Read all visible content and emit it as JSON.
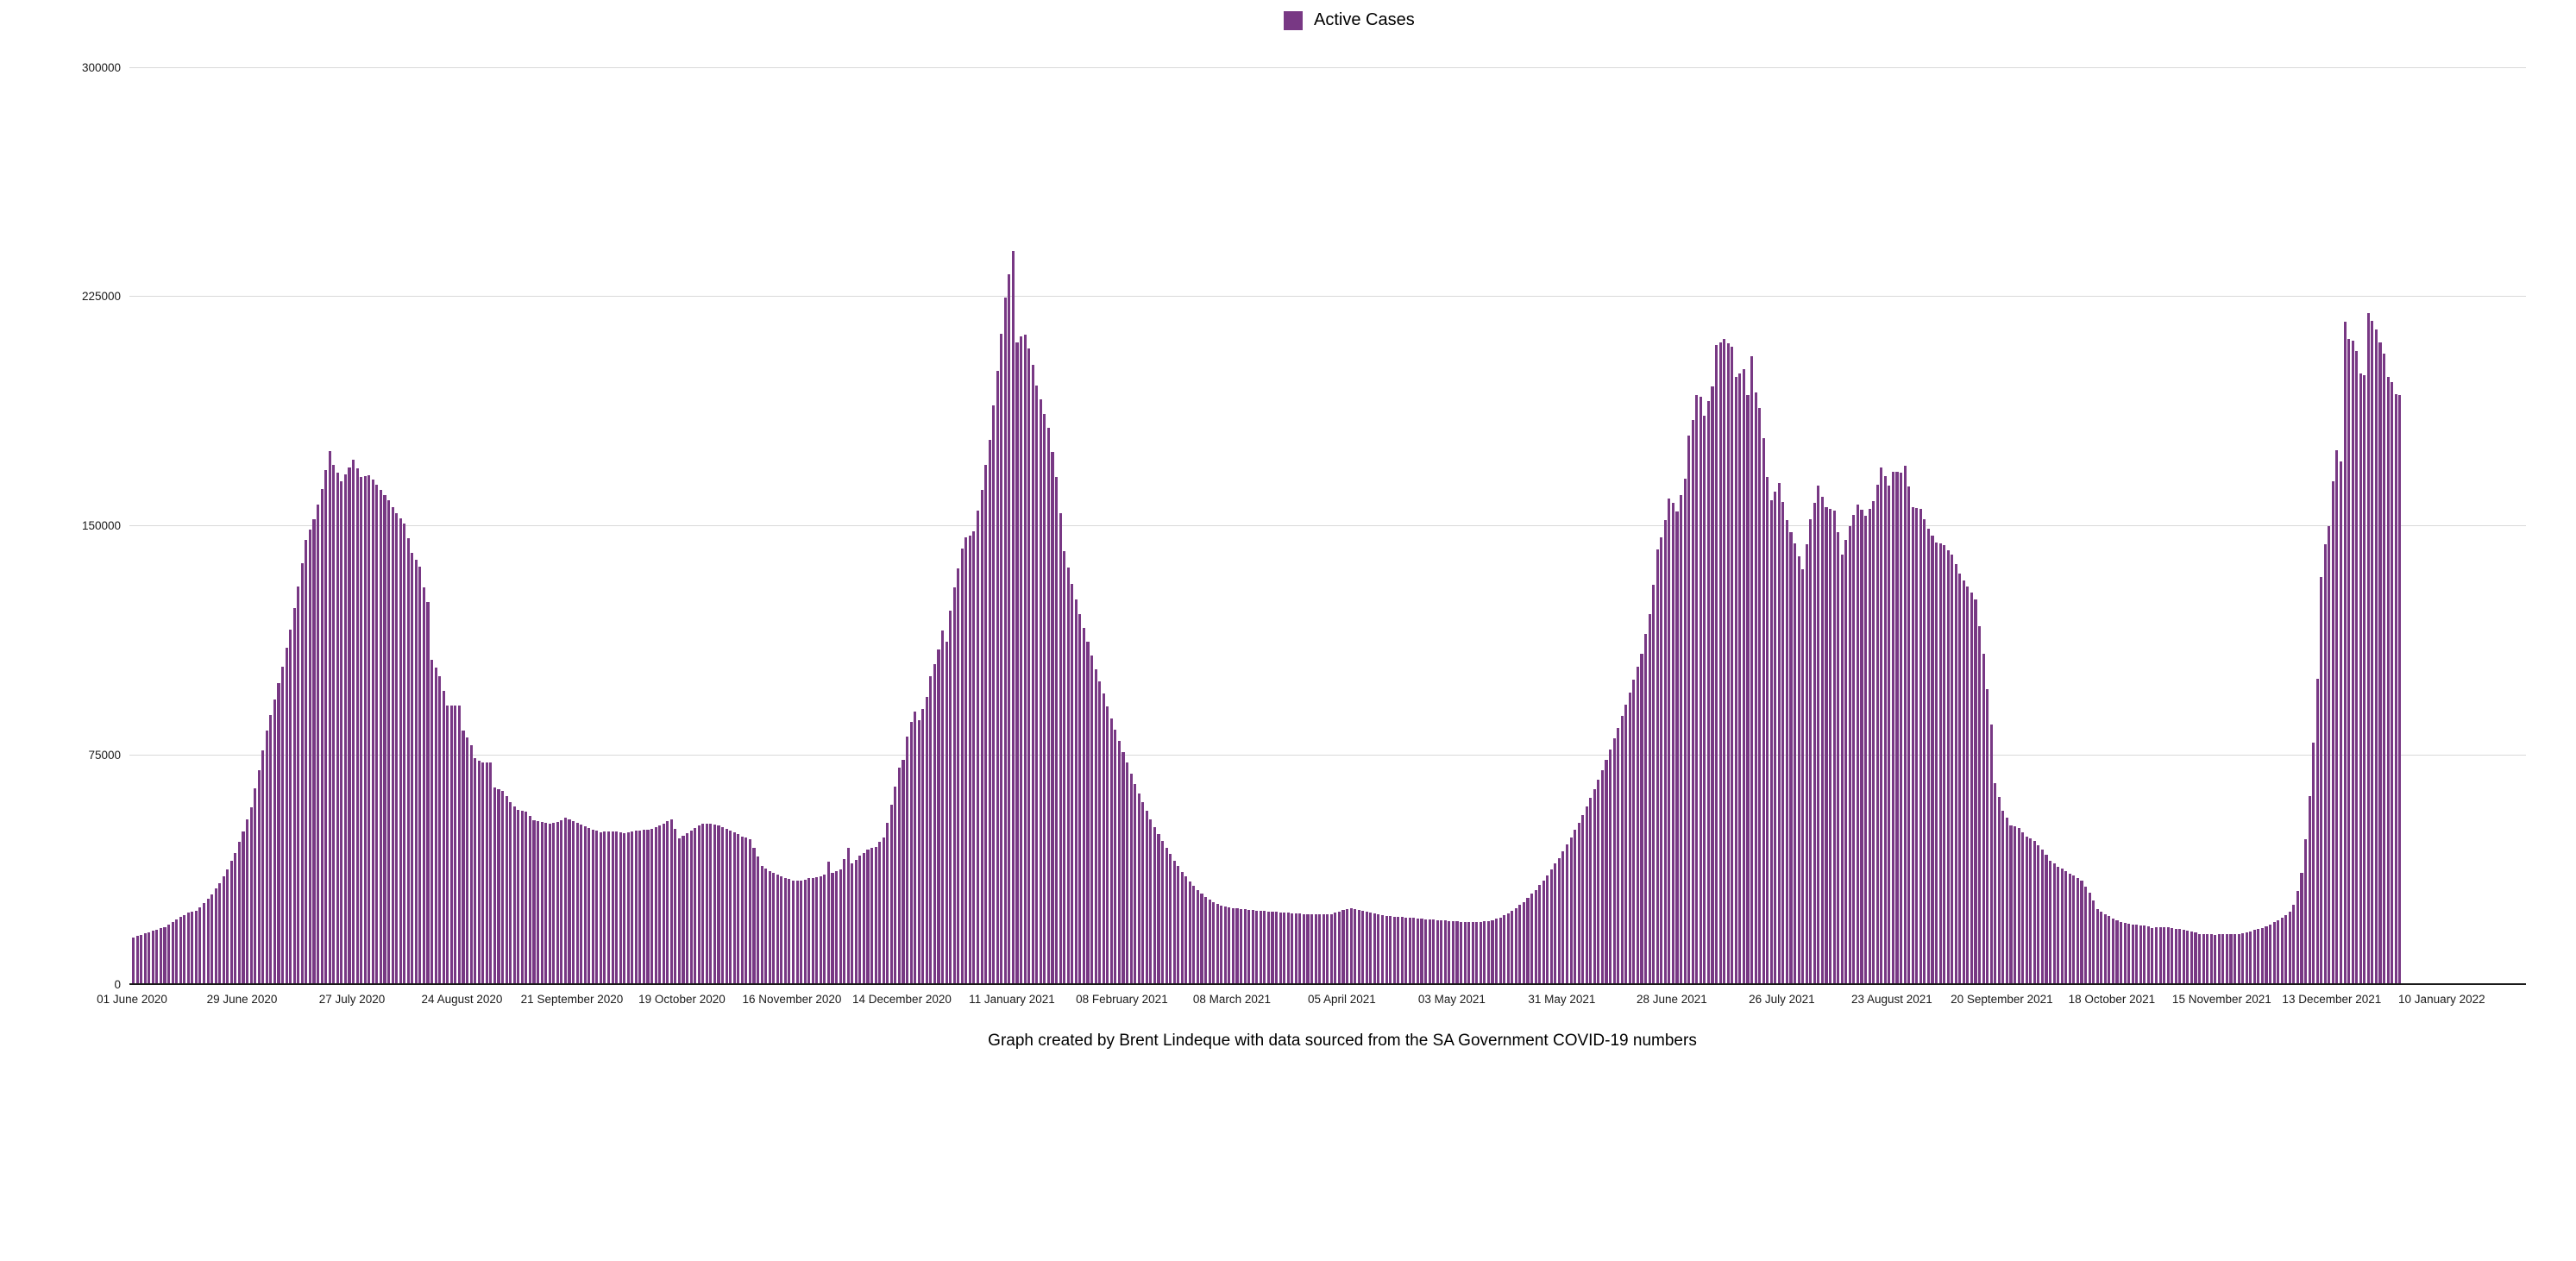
{
  "legend": {
    "label": "Active Cases",
    "color": "#783884"
  },
  "caption": "Graph created by Brent Lindeque with data sourced from the SA Government COVID-19 numbers",
  "chart_data": {
    "type": "bar",
    "title": "",
    "xlabel": "",
    "ylabel": "",
    "series_name": "Active Cases",
    "bar_color": "#783884",
    "grid": "horizontal",
    "legend_position": "top-center",
    "ylim": [
      0,
      300000
    ],
    "y_ticks": [
      0,
      75000,
      150000,
      225000,
      300000
    ],
    "x_start_date": "01 June 2020",
    "x_tick_interval_days": 28,
    "x_tick_labels": [
      "01 June 2020",
      "29 June 2020",
      "27 July 2020",
      "24 August 2020",
      "21 September 2020",
      "19 October 2020",
      "16 November 2020",
      "14 December 2020",
      "11 January 2021",
      "08 February 2021",
      "08 March 2021",
      "05 April 2021",
      "03 May 2021",
      "31 May 2021",
      "28 June 2021",
      "26 July 2021",
      "23 August 2021",
      "20 September 2021",
      "18 October 2021",
      "15 November 2021",
      "13 December 2021",
      "10 January 2022"
    ],
    "n_days": 578,
    "daily_keypoints": [
      [
        0,
        15300
      ],
      [
        2,
        16200
      ],
      [
        4,
        17000
      ],
      [
        6,
        17900
      ],
      [
        8,
        18600
      ],
      [
        10,
        20200
      ],
      [
        12,
        22000
      ],
      [
        14,
        23300
      ],
      [
        16,
        24000
      ],
      [
        18,
        26400
      ],
      [
        20,
        29400
      ],
      [
        22,
        33000
      ],
      [
        24,
        37500
      ],
      [
        26,
        43000
      ],
      [
        28,
        50000
      ],
      [
        30,
        58000
      ],
      [
        32,
        70000
      ],
      [
        34,
        83000
      ],
      [
        36,
        93000
      ],
      [
        38,
        104000
      ],
      [
        40,
        116000
      ],
      [
        42,
        130000
      ],
      [
        44,
        145300
      ],
      [
        46,
        152000
      ],
      [
        48,
        162000
      ],
      [
        50,
        174400
      ],
      [
        51,
        170000
      ],
      [
        53,
        164500
      ],
      [
        55,
        169000
      ],
      [
        56,
        171600
      ],
      [
        58,
        166000
      ],
      [
        60,
        166500
      ],
      [
        62,
        163500
      ],
      [
        65,
        158300
      ],
      [
        67,
        154000
      ],
      [
        69,
        150800
      ],
      [
        71,
        141000
      ],
      [
        73,
        136700
      ],
      [
        74,
        129700
      ],
      [
        75,
        124900
      ],
      [
        76,
        106100
      ],
      [
        78,
        100800
      ],
      [
        80,
        91100
      ],
      [
        83,
        91100
      ],
      [
        84,
        83100
      ],
      [
        86,
        78300
      ],
      [
        87,
        74000
      ],
      [
        89,
        72400
      ],
      [
        91,
        72400
      ],
      [
        92,
        64400
      ],
      [
        94,
        63300
      ],
      [
        96,
        59600
      ],
      [
        98,
        56900
      ],
      [
        100,
        56400
      ],
      [
        102,
        53700
      ],
      [
        104,
        53200
      ],
      [
        106,
        52600
      ],
      [
        108,
        53000
      ],
      [
        110,
        54500
      ],
      [
        113,
        52800
      ],
      [
        116,
        51000
      ],
      [
        119,
        49800
      ],
      [
        122,
        50000
      ],
      [
        125,
        49500
      ],
      [
        128,
        50200
      ],
      [
        131,
        50500
      ],
      [
        134,
        51800
      ],
      [
        137,
        54000
      ],
      [
        139,
        47800
      ],
      [
        141,
        49500
      ],
      [
        143,
        51200
      ],
      [
        145,
        52400
      ],
      [
        147,
        52600
      ],
      [
        149,
        51900
      ],
      [
        152,
        50200
      ],
      [
        155,
        48400
      ],
      [
        157,
        47300
      ],
      [
        158,
        44500
      ],
      [
        160,
        38800
      ],
      [
        162,
        37000
      ],
      [
        164,
        35800
      ],
      [
        166,
        34800
      ],
      [
        168,
        33900
      ],
      [
        170,
        33800
      ],
      [
        172,
        34700
      ],
      [
        174,
        34900
      ],
      [
        176,
        35800
      ],
      [
        177,
        40000
      ],
      [
        178,
        36500
      ],
      [
        180,
        37600
      ],
      [
        182,
        44500
      ],
      [
        183,
        39500
      ],
      [
        185,
        42000
      ],
      [
        187,
        44000
      ],
      [
        189,
        45000
      ],
      [
        191,
        47900
      ],
      [
        192,
        52700
      ],
      [
        193,
        58600
      ],
      [
        194,
        64500
      ],
      [
        195,
        70900
      ],
      [
        196,
        73500
      ],
      [
        197,
        81000
      ],
      [
        198,
        85800
      ],
      [
        199,
        89200
      ],
      [
        200,
        86400
      ],
      [
        201,
        90000
      ],
      [
        202,
        94000
      ],
      [
        203,
        100800
      ],
      [
        204,
        104700
      ],
      [
        205,
        109500
      ],
      [
        206,
        115700
      ],
      [
        207,
        112000
      ],
      [
        208,
        122200
      ],
      [
        209,
        129800
      ],
      [
        210,
        136000
      ],
      [
        211,
        142500
      ],
      [
        212,
        146200
      ],
      [
        213,
        146800
      ],
      [
        214,
        148200
      ],
      [
        215,
        155000
      ],
      [
        216,
        161700
      ],
      [
        218,
        178000
      ],
      [
        220,
        200700
      ],
      [
        222,
        224700
      ],
      [
        223,
        232200
      ],
      [
        224,
        239900
      ],
      [
        225,
        210000
      ],
      [
        226,
        212000
      ],
      [
        227,
        212500
      ],
      [
        228,
        208000
      ],
      [
        229,
        202600
      ],
      [
        230,
        196000
      ],
      [
        231,
        191300
      ],
      [
        233,
        182000
      ],
      [
        235,
        166000
      ],
      [
        236,
        154000
      ],
      [
        237,
        141700
      ],
      [
        239,
        131000
      ],
      [
        241,
        121000
      ],
      [
        243,
        112000
      ],
      [
        245,
        103000
      ],
      [
        247,
        95000
      ],
      [
        249,
        87000
      ],
      [
        251,
        79500
      ],
      [
        253,
        72500
      ],
      [
        255,
        65500
      ],
      [
        257,
        59500
      ],
      [
        259,
        54000
      ],
      [
        261,
        49000
      ],
      [
        263,
        44500
      ],
      [
        265,
        40500
      ],
      [
        267,
        36800
      ],
      [
        269,
        33600
      ],
      [
        271,
        30900
      ],
      [
        273,
        28600
      ],
      [
        275,
        26900
      ],
      [
        277,
        25800
      ],
      [
        279,
        25100
      ],
      [
        281,
        24700
      ],
      [
        284,
        24300
      ],
      [
        287,
        24000
      ],
      [
        290,
        23700
      ],
      [
        293,
        23400
      ],
      [
        296,
        23200
      ],
      [
        299,
        22900
      ],
      [
        302,
        22800
      ],
      [
        305,
        23000
      ],
      [
        308,
        24200
      ],
      [
        310,
        24800
      ],
      [
        312,
        24400
      ],
      [
        315,
        23300
      ],
      [
        318,
        22600
      ],
      [
        321,
        22100
      ],
      [
        324,
        21800
      ],
      [
        327,
        21500
      ],
      [
        330,
        21200
      ],
      [
        333,
        20900
      ],
      [
        336,
        20600
      ],
      [
        339,
        20300
      ],
      [
        342,
        20200
      ],
      [
        345,
        20600
      ],
      [
        348,
        21800
      ],
      [
        351,
        23900
      ],
      [
        354,
        26900
      ],
      [
        357,
        30800
      ],
      [
        360,
        35600
      ],
      [
        363,
        41300
      ],
      [
        366,
        47900
      ],
      [
        369,
        55400
      ],
      [
        372,
        63800
      ],
      [
        375,
        73300
      ],
      [
        378,
        83800
      ],
      [
        381,
        95400
      ],
      [
        384,
        108000
      ],
      [
        386,
        121000
      ],
      [
        387,
        130700
      ],
      [
        388,
        142300
      ],
      [
        389,
        146200
      ],
      [
        390,
        151800
      ],
      [
        391,
        158800
      ],
      [
        392,
        157400
      ],
      [
        393,
        154600
      ],
      [
        395,
        165300
      ],
      [
        396,
        179400
      ],
      [
        397,
        184600
      ],
      [
        398,
        192700
      ],
      [
        399,
        192200
      ],
      [
        400,
        186100
      ],
      [
        402,
        195500
      ],
      [
        403,
        209100
      ],
      [
        405,
        211000
      ],
      [
        407,
        208600
      ],
      [
        408,
        198700
      ],
      [
        410,
        201200
      ],
      [
        411,
        192700
      ],
      [
        412,
        205400
      ],
      [
        413,
        193600
      ],
      [
        414,
        188500
      ],
      [
        415,
        178600
      ],
      [
        416,
        165900
      ],
      [
        417,
        158300
      ],
      [
        419,
        164000
      ],
      [
        421,
        151800
      ],
      [
        423,
        144200
      ],
      [
        425,
        135700
      ],
      [
        427,
        152000
      ],
      [
        429,
        163000
      ],
      [
        431,
        156000
      ],
      [
        433,
        155000
      ],
      [
        435,
        140500
      ],
      [
        437,
        150000
      ],
      [
        439,
        157000
      ],
      [
        441,
        153200
      ],
      [
        443,
        158000
      ],
      [
        445,
        169100
      ],
      [
        447,
        163100
      ],
      [
        448,
        167700
      ],
      [
        450,
        167400
      ],
      [
        451,
        169700
      ],
      [
        453,
        156100
      ],
      [
        455,
        155500
      ],
      [
        457,
        149000
      ],
      [
        459,
        144600
      ],
      [
        461,
        143700
      ],
      [
        463,
        140500
      ],
      [
        465,
        134300
      ],
      [
        467,
        130100
      ],
      [
        469,
        126000
      ],
      [
        471,
        108000
      ],
      [
        473,
        85000
      ],
      [
        474,
        65700
      ],
      [
        476,
        56700
      ],
      [
        478,
        52000
      ],
      [
        480,
        51100
      ],
      [
        482,
        48300
      ],
      [
        484,
        46900
      ],
      [
        486,
        44000
      ],
      [
        488,
        40500
      ],
      [
        490,
        38500
      ],
      [
        492,
        36900
      ],
      [
        494,
        35600
      ],
      [
        496,
        33800
      ],
      [
        498,
        30000
      ],
      [
        500,
        24500
      ],
      [
        502,
        22900
      ],
      [
        504,
        21500
      ],
      [
        506,
        20300
      ],
      [
        508,
        19800
      ],
      [
        510,
        19400
      ],
      [
        512,
        19200
      ],
      [
        514,
        18400
      ],
      [
        516,
        18600
      ],
      [
        518,
        18600
      ],
      [
        520,
        18200
      ],
      [
        522,
        17900
      ],
      [
        524,
        17200
      ],
      [
        526,
        16500
      ],
      [
        528,
        16400
      ],
      [
        530,
        16200
      ],
      [
        532,
        16400
      ],
      [
        534,
        16400
      ],
      [
        536,
        16500
      ],
      [
        538,
        17000
      ],
      [
        540,
        17700
      ],
      [
        542,
        18400
      ],
      [
        544,
        19500
      ],
      [
        546,
        21000
      ],
      [
        548,
        22500
      ],
      [
        549,
        23800
      ],
      [
        550,
        26000
      ],
      [
        551,
        30400
      ],
      [
        552,
        36500
      ],
      [
        553,
        47400
      ],
      [
        554,
        61400
      ],
      [
        555,
        79000
      ],
      [
        556,
        100000
      ],
      [
        557,
        133200
      ],
      [
        558,
        143800
      ],
      [
        559,
        150000
      ],
      [
        560,
        164500
      ],
      [
        561,
        174800
      ],
      [
        562,
        171000
      ],
      [
        563,
        216700
      ],
      [
        564,
        211000
      ],
      [
        565,
        210500
      ],
      [
        566,
        207200
      ],
      [
        567,
        199800
      ],
      [
        568,
        199200
      ],
      [
        569,
        219500
      ],
      [
        570,
        217100
      ],
      [
        571,
        214300
      ],
      [
        572,
        210000
      ],
      [
        573,
        206300
      ],
      [
        574,
        198700
      ],
      [
        575,
        197000
      ],
      [
        576,
        193100
      ],
      [
        577,
        192700
      ]
    ]
  }
}
